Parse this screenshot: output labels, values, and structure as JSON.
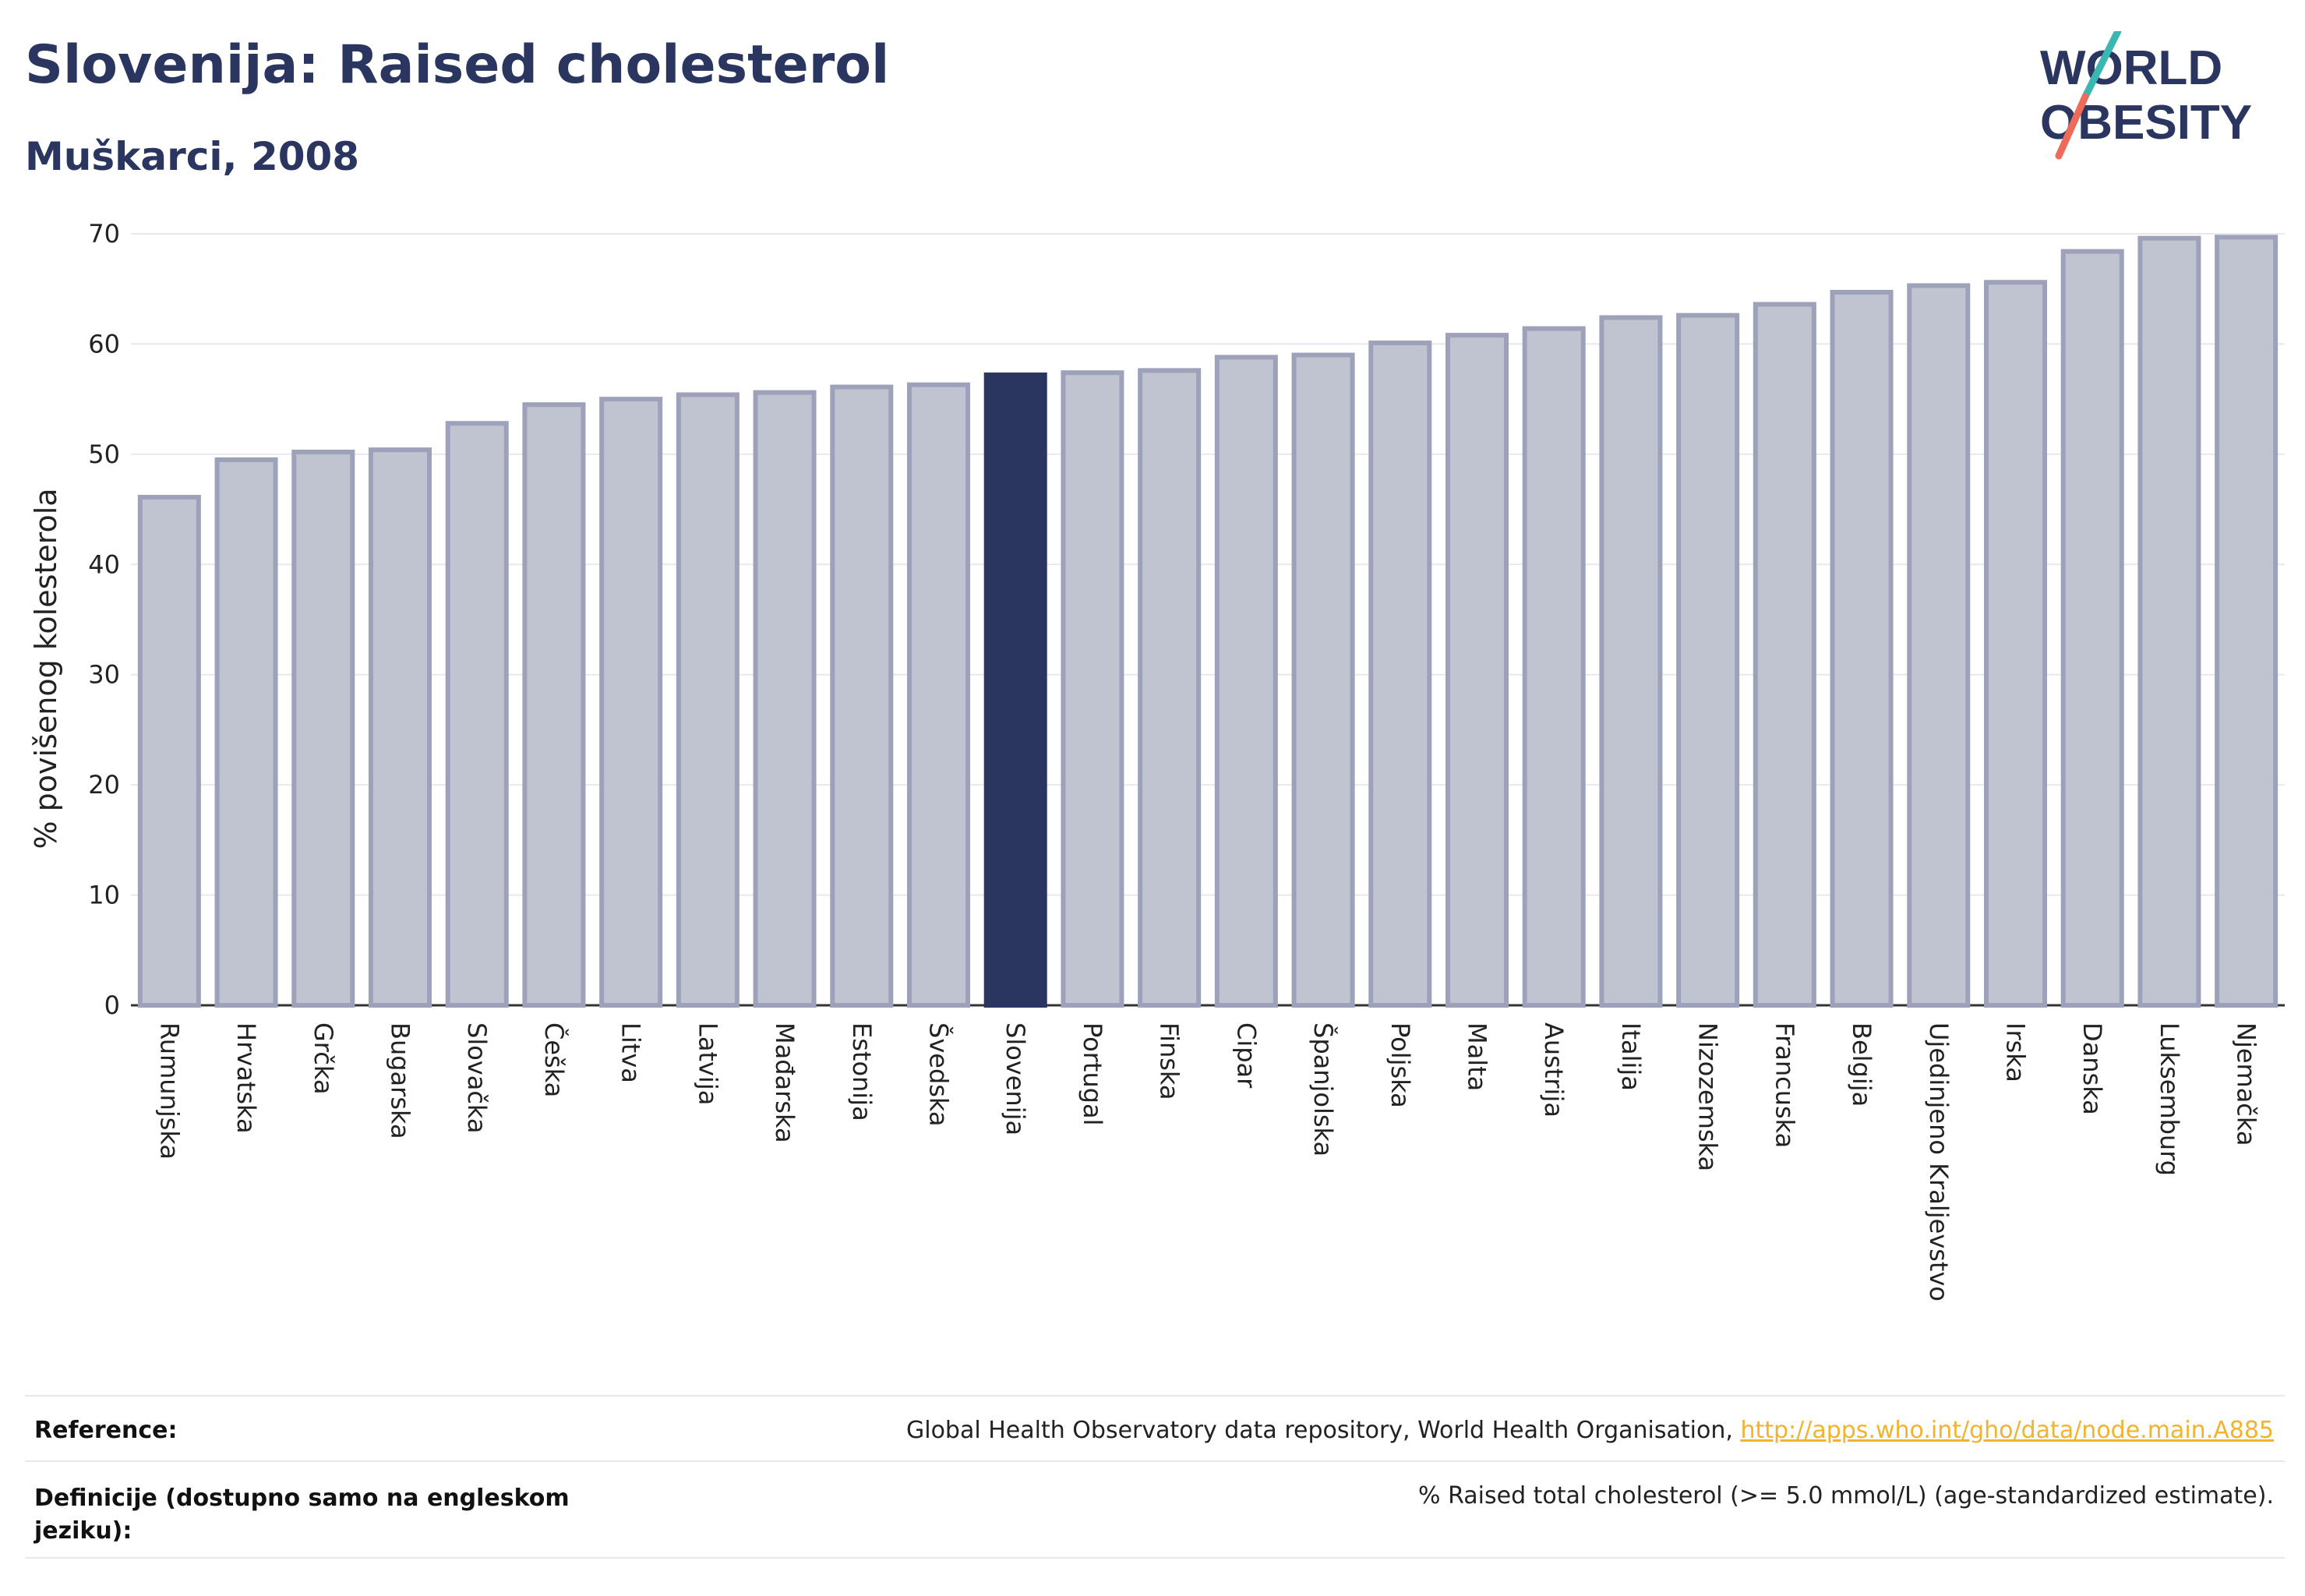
{
  "header": {
    "title": "Slovenija: Raised cholesterol",
    "subtitle": "Muškarci, 2008",
    "logo_line1": "WORLD",
    "logo_line2": "OBESITY"
  },
  "colors": {
    "highlight": "#2a3560",
    "bar_fill": "#c0c3d0",
    "bar_stroke": "#9da2ba",
    "logo_slash_teal": "#3ab7b0",
    "logo_slash_coral": "#ee6b5a",
    "link": "#f2b32e"
  },
  "chart_data": {
    "type": "bar",
    "title": "",
    "xlabel": "",
    "ylabel": "% povišenog kolesterola",
    "ylim": [
      0,
      70
    ],
    "yticks": [
      0,
      10,
      20,
      30,
      40,
      50,
      60,
      70
    ],
    "grid": true,
    "highlight_category": "Slovenija",
    "categories": [
      "Rumunjska",
      "Hrvatska",
      "Grčka",
      "Bugarska",
      "Slovačka",
      "Češka",
      "Litva",
      "Latvija",
      "Mađarska",
      "Estonija",
      "Švedska",
      "Slovenija",
      "Portugal",
      "Finska",
      "Cipar",
      "Španjolska",
      "Poljska",
      "Malta",
      "Austrija",
      "Italija",
      "Nizozemska",
      "Francuska",
      "Belgija",
      "Ujedinjeno Kraljevstvo",
      "Irska",
      "Danska",
      "Luksemburg",
      "Njemačka"
    ],
    "values": [
      46.1,
      49.5,
      50.2,
      50.4,
      52.8,
      54.5,
      55.0,
      55.4,
      55.6,
      56.1,
      56.3,
      57.2,
      57.4,
      57.6,
      58.8,
      59.0,
      60.1,
      60.8,
      61.4,
      62.4,
      62.6,
      63.6,
      64.7,
      65.3,
      65.6,
      68.4,
      69.6,
      69.7
    ]
  },
  "footer": {
    "reference_label": "Reference:",
    "reference_text": "Global Health Observatory data repository, World Health Organisation,",
    "reference_link": "http://apps.who.int/gho/data/node.main.A885",
    "definition_label": "Definicije (dostupno samo na engleskom jeziku):",
    "definition_text": "% Raised total cholesterol (>= 5.0 mmol/L) (age-standardized estimate)."
  }
}
